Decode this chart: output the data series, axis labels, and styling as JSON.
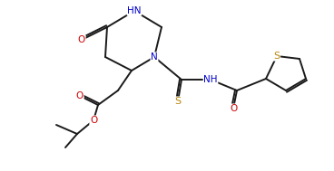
{
  "background_color": "#ffffff",
  "line_color": "#1a1a1a",
  "atom_colors": {
    "O": "#cc0000",
    "N": "#0000cc",
    "S": "#b8860b",
    "C": "#1a1a1a"
  },
  "font_size": 7.5,
  "line_width": 1.4,
  "figsize": [
    3.68,
    1.89
  ],
  "dpi": 100
}
